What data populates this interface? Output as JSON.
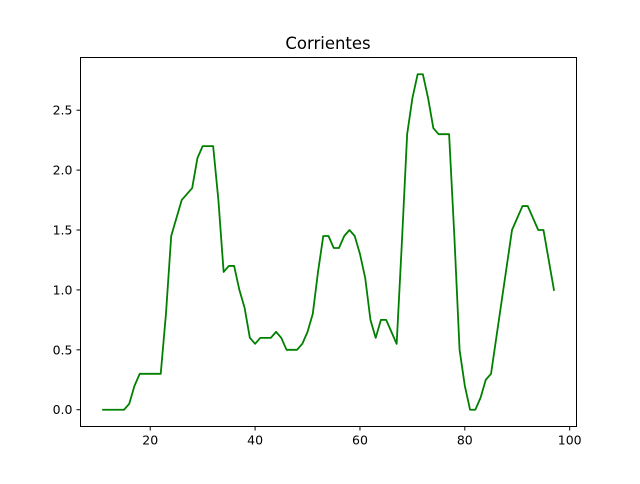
{
  "chart_data": {
    "type": "line",
    "title": "Corrientes",
    "xlabel": "",
    "ylabel": "",
    "xlim": [
      6.7,
      101.3
    ],
    "ylim": [
      -0.14,
      2.94
    ],
    "xticks": [
      20,
      40,
      60,
      80,
      100
    ],
    "yticks": [
      0.0,
      0.5,
      1.0,
      1.5,
      2.0,
      2.5
    ],
    "grid": false,
    "legend": "none",
    "series": [
      {
        "color": "#008000",
        "x": [
          11,
          12,
          13,
          14,
          15,
          16,
          17,
          18,
          19,
          20,
          21,
          22,
          23,
          24,
          25,
          26,
          27,
          28,
          29,
          30,
          31,
          32,
          33,
          34,
          35,
          36,
          37,
          38,
          39,
          40,
          41,
          42,
          43,
          44,
          45,
          46,
          47,
          48,
          49,
          50,
          51,
          52,
          53,
          54,
          55,
          56,
          57,
          58,
          59,
          60,
          61,
          62,
          63,
          64,
          65,
          66,
          67,
          68,
          69,
          70,
          71,
          72,
          73,
          74,
          75,
          76,
          77,
          78,
          79,
          80,
          81,
          82,
          83,
          84,
          85,
          86,
          87,
          88,
          89,
          90,
          91,
          92,
          93,
          94,
          95,
          96,
          97
        ],
        "values": [
          0.0,
          0.0,
          0.0,
          0.0,
          0.0,
          0.05,
          0.2,
          0.3,
          0.3,
          0.3,
          0.3,
          0.3,
          0.8,
          1.45,
          1.6,
          1.75,
          1.8,
          1.85,
          2.1,
          2.2,
          2.2,
          2.2,
          1.75,
          1.15,
          1.2,
          1.2,
          1.0,
          0.85,
          0.6,
          0.55,
          0.6,
          0.6,
          0.6,
          0.65,
          0.6,
          0.5,
          0.5,
          0.5,
          0.55,
          0.65,
          0.8,
          1.15,
          1.45,
          1.45,
          1.35,
          1.35,
          1.45,
          1.5,
          1.45,
          1.3,
          1.1,
          0.75,
          0.6,
          0.75,
          0.75,
          0.65,
          0.55,
          1.4,
          2.3,
          2.6,
          2.8,
          2.8,
          2.6,
          2.35,
          2.3,
          2.3,
          2.3,
          1.45,
          0.5,
          0.2,
          0.0,
          0.0,
          0.1,
          0.25,
          0.3,
          0.6,
          0.9,
          1.2,
          1.5,
          1.6,
          1.7,
          1.7,
          1.6,
          1.5,
          1.5,
          1.25,
          1.0
        ]
      }
    ]
  }
}
